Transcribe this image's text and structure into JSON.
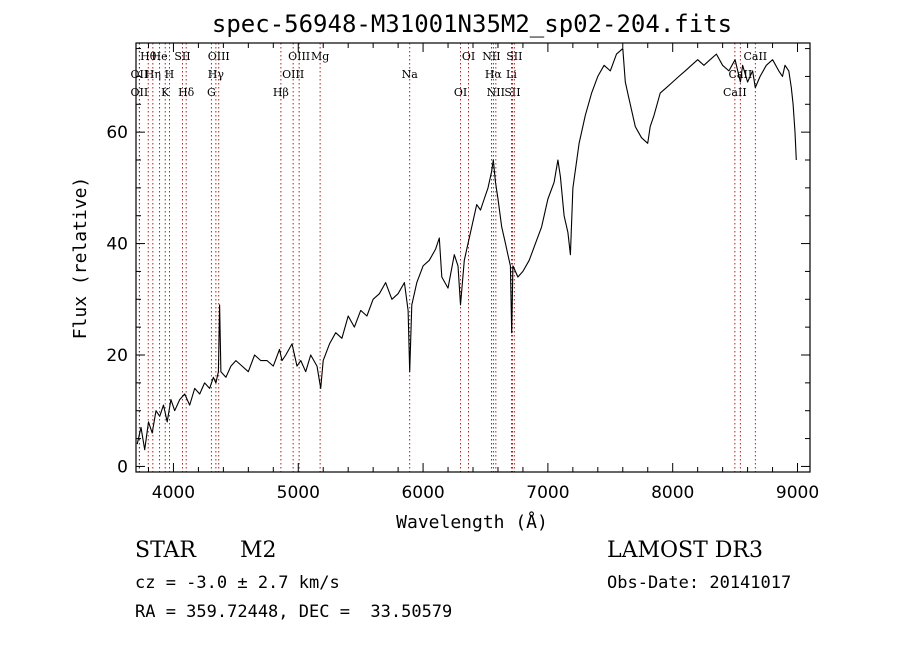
{
  "chart_data": {
    "type": "line",
    "title": "spec-56948-M31001N35M2_sp02-204.fits",
    "xlabel": "Wavelength (Å)",
    "ylabel": "Flux (relative)",
    "xlim": [
      3700,
      9100
    ],
    "ylim": [
      -1,
      76
    ],
    "xticks": [
      4000,
      5000,
      6000,
      7000,
      8000,
      9000
    ],
    "yticks": [
      0,
      20,
      40,
      60
    ],
    "series": [
      {
        "name": "flux",
        "x": [
          3710,
          3740,
          3770,
          3800,
          3830,
          3860,
          3890,
          3920,
          3950,
          3980,
          4010,
          4050,
          4090,
          4130,
          4170,
          4210,
          4250,
          4290,
          4320,
          4340,
          4360,
          4370,
          4380,
          4420,
          4460,
          4500,
          4550,
          4600,
          4650,
          4700,
          4750,
          4800,
          4850,
          4870,
          4900,
          4950,
          4990,
          5020,
          5060,
          5100,
          5150,
          5180,
          5200,
          5250,
          5300,
          5350,
          5400,
          5450,
          5500,
          5550,
          5600,
          5650,
          5700,
          5750,
          5800,
          5850,
          5880,
          5893,
          5910,
          5950,
          6000,
          6050,
          6100,
          6130,
          6150,
          6200,
          6250,
          6280,
          6300,
          6330,
          6360,
          6400,
          6430,
          6460,
          6490,
          6520,
          6550,
          6563,
          6580,
          6600,
          6630,
          6660,
          6680,
          6700,
          6710,
          6720,
          6740,
          6760,
          6800,
          6850,
          6900,
          6950,
          7000,
          7050,
          7080,
          7100,
          7130,
          7160,
          7180,
          7200,
          7250,
          7300,
          7350,
          7400,
          7450,
          7500,
          7550,
          7600,
          7620,
          7650,
          7700,
          7750,
          7800,
          7820,
          7850,
          7900,
          7950,
          8000,
          8050,
          8100,
          8150,
          8200,
          8250,
          8300,
          8350,
          8400,
          8450,
          8500,
          8542,
          8560,
          8600,
          8640,
          8662,
          8700,
          8750,
          8800,
          8850,
          8880,
          8900,
          8930,
          8950,
          8965,
          8980,
          8990
        ],
        "y": [
          4,
          7,
          3,
          8,
          6,
          10,
          9,
          11,
          8,
          12,
          10,
          12,
          13,
          11,
          14,
          13,
          15,
          14,
          16,
          15,
          17,
          29,
          17,
          16,
          18,
          19,
          18,
          17,
          20,
          19,
          19,
          18,
          21,
          19,
          20,
          22,
          18,
          19,
          17,
          20,
          18,
          14,
          19,
          22,
          24,
          23,
          27,
          25,
          28,
          27,
          30,
          31,
          33,
          30,
          31,
          33,
          28,
          17,
          29,
          33,
          36,
          37,
          39,
          41,
          34,
          32,
          38,
          36,
          29,
          37,
          40,
          44,
          47,
          46,
          48,
          50,
          53,
          55,
          51,
          48,
          43,
          40,
          38,
          36,
          24,
          36,
          35,
          34,
          35,
          37,
          40,
          43,
          48,
          51,
          55,
          52,
          45,
          42,
          38,
          50,
          58,
          63,
          67,
          70,
          72,
          71,
          74,
          75,
          69,
          66,
          61,
          59,
          58,
          61,
          63,
          67,
          68,
          69,
          70,
          71,
          72,
          73,
          72,
          73,
          74,
          72,
          71,
          73,
          69,
          72,
          69,
          71,
          68,
          70,
          72,
          73,
          71,
          70,
          72,
          71,
          68,
          65,
          60,
          55
        ]
      }
    ],
    "line_markers": [
      {
        "label": "Hθ",
        "wave": 3798
      },
      {
        "label": "OII",
        "wave": 3727
      },
      {
        "label": "OII",
        "wave": 3727
      },
      {
        "label": "He",
        "wave": 3889
      },
      {
        "label": "Hη",
        "wave": 3835
      },
      {
        "label": "K",
        "wave": 3934
      },
      {
        "label": "SII",
        "wave": 4072
      },
      {
        "label": "H",
        "wave": 3968
      },
      {
        "label": "Hδ",
        "wave": 4102
      },
      {
        "label": "OIII",
        "wave": 4363
      },
      {
        "label": "Hγ",
        "wave": 4340
      },
      {
        "label": "G",
        "wave": 4304
      },
      {
        "label": "OIII",
        "wave": 5007
      },
      {
        "label": "OIII",
        "wave": 4959
      },
      {
        "label": "Hβ",
        "wave": 4861
      },
      {
        "label": "Mg",
        "wave": 5175
      },
      {
        "label": "Na",
        "wave": 5893
      },
      {
        "label": "OI",
        "wave": 6300
      },
      {
        "label": "OI",
        "wave": 6364
      },
      {
        "label": "Hα",
        "wave": 6563
      },
      {
        "label": "SII",
        "wave": 6716
      },
      {
        "label": "NII",
        "wave": 6548
      },
      {
        "label": "Li",
        "wave": 6708
      },
      {
        "label": "NII",
        "wave": 6583
      },
      {
        "label": "SII",
        "wave": 6731
      },
      {
        "label": "CaII",
        "wave": 8542
      },
      {
        "label": "CaII",
        "wave": 8498
      },
      {
        "label": "CaII",
        "wave": 8662
      }
    ],
    "annotations": {
      "class": "STAR",
      "subclass": "M2",
      "cz": "cz = -3.0 ± 2.7 km/s",
      "coords": "RA = 359.72448, DEC =  33.50579",
      "survey": "LAMOST DR3",
      "obs_date": "Obs-Date: 20141017"
    }
  }
}
